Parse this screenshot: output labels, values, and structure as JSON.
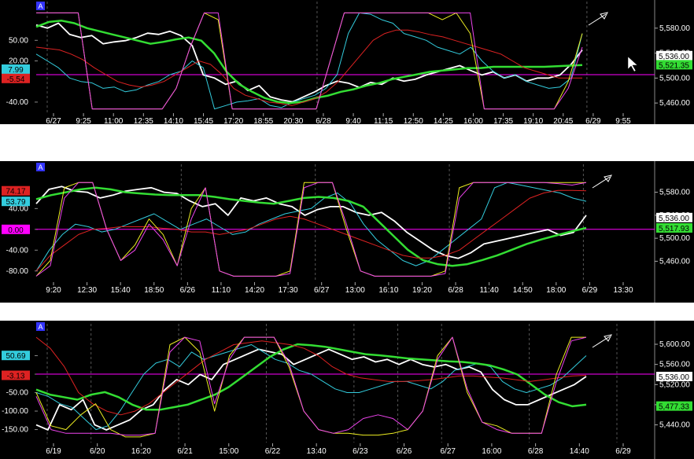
{
  "colors": {
    "background": "#000000",
    "gap": "#ffffff",
    "white_series": "#ffffff",
    "cyan_series": "#33ccdd",
    "green_series": "#33dd33",
    "red_series": "#dd2222",
    "yellow_series": "#eeee22",
    "magenta_series": "#ee44ee",
    "hline": "#ff00ff",
    "grid_vertical": "#555555",
    "panel_marker": "#3333ff"
  },
  "panel_marker_label": "A",
  "chart_data": [
    {
      "type": "line",
      "panel": "top",
      "x_ticks": [
        "6/27",
        "9:25",
        "11:00",
        "12:35",
        "14:10",
        "15:45",
        "17:20",
        "18:55",
        "20:30",
        "6/28",
        "9:40",
        "11:15",
        "12:50",
        "14:25",
        "16:00",
        "17:35",
        "19:10",
        "20:45",
        "6/29",
        "9:55"
      ],
      "left_ticks": [
        "50.00",
        "20.00",
        "-40.00"
      ],
      "left_ylim": [
        -55,
        95
      ],
      "left_badges": [
        {
          "text": "7.99",
          "value": 7.99,
          "bg": "#33ccdd",
          "fg": "#000000"
        },
        {
          "text": "-5.54",
          "value": -5.54,
          "bg": "#dd2222",
          "fg": "#000000"
        }
      ],
      "right_ticks": [
        "5,580.00",
        "5,540.00",
        "5,500.00",
        "5,460.00"
      ],
      "right_ylim": [
        5445,
        5610
      ],
      "right_labels": [
        {
          "text": "5,536.00",
          "value": 5536.0,
          "bg": "#ffffff",
          "fg": "#000000"
        },
        {
          "text": "5,521.35",
          "value": 5521.35,
          "bg": "#33dd33",
          "fg": "#000000"
        }
      ],
      "hline_value": 0,
      "series": [
        {
          "color": "white_series",
          "axis": "right",
          "values": [
            5585,
            5580,
            5588,
            5570,
            5565,
            5568,
            5555,
            5558,
            5560,
            5565,
            5572,
            5570,
            5575,
            5568,
            5552,
            5505,
            5500,
            5490,
            5495,
            5480,
            5488,
            5470,
            5465,
            5462,
            5470,
            5478,
            5488,
            5495,
            5492,
            5485,
            5493,
            5490,
            5500,
            5495,
            5498,
            5505,
            5510,
            5515,
            5520,
            5512,
            5505,
            5510,
            5500,
            5505,
            5495,
            5500,
            5500,
            5505,
            5522,
            5545
          ]
        },
        {
          "color": "cyan_series",
          "axis": "left",
          "values": [
            30,
            20,
            10,
            -5,
            -10,
            -12,
            -20,
            -18,
            -25,
            -22,
            -15,
            -10,
            0,
            5,
            20,
            10,
            -50,
            -45,
            -40,
            -38,
            -35,
            -45,
            -48,
            -40,
            -35,
            -30,
            -20,
            0,
            60,
            90,
            88,
            80,
            75,
            60,
            55,
            50,
            40,
            35,
            30,
            40,
            20,
            5,
            -5,
            0,
            -10,
            -15,
            -20,
            -18,
            -5,
            60
          ]
        },
        {
          "color": "green_series",
          "axis": "right",
          "values": [
            5582,
            5590,
            5592,
            5588,
            5580,
            5575,
            5570,
            5565,
            5560,
            5555,
            5558,
            5562,
            5565,
            5560,
            5540,
            5510,
            5490,
            5478,
            5468,
            5462,
            5460,
            5462,
            5468,
            5472,
            5478,
            5482,
            5488,
            5492,
            5498,
            5502,
            5506,
            5510,
            5512,
            5514,
            5516,
            5516,
            5518,
            5518,
            5518,
            5518,
            5518,
            5519,
            5520,
            5521
          ]
        },
        {
          "color": "red_series",
          "axis": "left",
          "values": [
            40,
            38,
            36,
            30,
            22,
            10,
            0,
            -10,
            -15,
            -18,
            -15,
            -10,
            0,
            10,
            20,
            15,
            0,
            -20,
            -30,
            -35,
            -40,
            -42,
            -45,
            -40,
            -35,
            -25,
            -10,
            10,
            30,
            50,
            60,
            65,
            65,
            62,
            58,
            55,
            50,
            45,
            40,
            35,
            30,
            20,
            10,
            5,
            0,
            -5,
            -5,
            -5
          ]
        },
        {
          "color": "yellow_series",
          "axis": "left",
          "values": [
            90,
            90,
            90,
            90,
            -50,
            -50,
            -50,
            -50,
            -50,
            -50,
            -20,
            40,
            90,
            80,
            -50,
            -50,
            -50,
            -50,
            -50,
            -50,
            -50,
            20,
            90,
            90,
            90,
            90,
            90,
            90,
            90,
            80,
            90,
            60,
            -50,
            -50,
            -50,
            -50,
            -50,
            -50,
            -10,
            60
          ]
        },
        {
          "color": "magenta_series",
          "axis": "left",
          "values": [
            90,
            90,
            90,
            90,
            -50,
            -50,
            -50,
            -50,
            -50,
            -50,
            -20,
            40,
            90,
            90,
            -50,
            -50,
            -50,
            -50,
            -50,
            -50,
            -50,
            20,
            90,
            90,
            90,
            90,
            90,
            90,
            90,
            90,
            90,
            90,
            -50,
            -50,
            -50,
            -50,
            -50,
            -50,
            -20,
            40
          ]
        }
      ]
    },
    {
      "type": "line",
      "panel": "middle",
      "x_ticks": [
        "9:20",
        "12:30",
        "15:40",
        "18:50",
        "6/26",
        "11:10",
        "14:20",
        "17:30",
        "6/27",
        "13:00",
        "16:10",
        "19:20",
        "6/28",
        "11:40",
        "14:50",
        "18:00",
        "6/29",
        "13:30"
      ],
      "left_ticks": [
        "40.00",
        "0.00",
        "-40.00",
        "-80.00"
      ],
      "left_ylim": [
        -100,
        110
      ],
      "left_badges": [
        {
          "text": "74.17",
          "value": 74.17,
          "bg": "#dd2222",
          "fg": "#000000"
        },
        {
          "text": "53.79",
          "value": 53.79,
          "bg": "#33ccdd",
          "fg": "#000000"
        },
        {
          "text": "0.00",
          "value": 0.0,
          "bg": "#ff00ff",
          "fg": "#000000"
        }
      ],
      "right_ticks": [
        "5,580.00",
        "5,540.00",
        "5,500.00",
        "5,460.00"
      ],
      "right_ylim": [
        5425,
        5615
      ],
      "right_labels": [
        {
          "text": "5,536.00",
          "value": 5536.0,
          "bg": "#ffffff",
          "fg": "#000000"
        },
        {
          "text": "5,517.93",
          "value": 5517.93,
          "bg": "#33dd33",
          "fg": "#000000"
        }
      ],
      "hline_value": 0,
      "series": [
        {
          "color": "white_series",
          "axis": "right",
          "values": [
            5560,
            5585,
            5590,
            5582,
            5580,
            5570,
            5575,
            5582,
            5585,
            5588,
            5580,
            5578,
            5565,
            5555,
            5560,
            5540,
            5570,
            5565,
            5570,
            5560,
            5555,
            5540,
            5550,
            5555,
            5555,
            5545,
            5540,
            5545,
            5530,
            5510,
            5495,
            5480,
            5470,
            5465,
            5475,
            5490,
            5495,
            5500,
            5505,
            5510,
            5515,
            5505,
            5510,
            5540
          ]
        },
        {
          "color": "cyan_series",
          "axis": "left",
          "values": [
            -80,
            -40,
            -10,
            10,
            5,
            -5,
            0,
            10,
            20,
            30,
            15,
            0,
            10,
            20,
            5,
            -10,
            -5,
            10,
            20,
            30,
            35,
            40,
            60,
            70,
            50,
            10,
            -20,
            -40,
            -60,
            -70,
            -60,
            -40,
            -20,
            0,
            20,
            80,
            90,
            85,
            80,
            75,
            70,
            60,
            54
          ]
        },
        {
          "color": "green_series",
          "axis": "right",
          "values": [
            5568,
            5575,
            5580,
            5585,
            5588,
            5585,
            5580,
            5578,
            5576,
            5575,
            5575,
            5575,
            5572,
            5568,
            5565,
            5562,
            5560,
            5565,
            5570,
            5572,
            5570,
            5565,
            5555,
            5530,
            5505,
            5480,
            5462,
            5455,
            5452,
            5455,
            5462,
            5470,
            5480,
            5490,
            5498,
            5505,
            5512,
            5518
          ]
        },
        {
          "color": "red_series",
          "axis": "left",
          "values": [
            -80,
            -50,
            -30,
            -10,
            0,
            2,
            5,
            5,
            5,
            2,
            0,
            -5,
            -5,
            -10,
            -5,
            0,
            10,
            20,
            25,
            20,
            10,
            0,
            -10,
            -20,
            -30,
            -40,
            -50,
            -55,
            -55,
            -50,
            -40,
            -20,
            0,
            20,
            40,
            60,
            70,
            75,
            75,
            74
          ]
        },
        {
          "color": "yellow_series",
          "axis": "left",
          "values": [
            -90,
            -60,
            80,
            90,
            90,
            0,
            -60,
            -30,
            20,
            -10,
            -70,
            40,
            80,
            -80,
            -90,
            -90,
            -90,
            -90,
            -80,
            90,
            90,
            90,
            0,
            -80,
            -90,
            -90,
            -90,
            -90,
            -90,
            -80,
            80,
            90,
            90,
            90,
            90,
            90,
            90,
            90,
            90,
            90
          ]
        },
        {
          "color": "magenta_series",
          "axis": "left",
          "values": [
            -90,
            -70,
            60,
            90,
            90,
            0,
            -60,
            -40,
            10,
            -20,
            -70,
            20,
            80,
            -80,
            -90,
            -90,
            -90,
            -90,
            -85,
            80,
            90,
            90,
            10,
            -80,
            -90,
            -90,
            -90,
            -90,
            -90,
            -85,
            60,
            90,
            90,
            90,
            90,
            90,
            90,
            88,
            85,
            90
          ]
        }
      ]
    },
    {
      "type": "line",
      "panel": "bottom",
      "x_ticks": [
        "6/19",
        "6/20",
        "16:20",
        "6/21",
        "15:00",
        "6/22",
        "13:40",
        "6/23",
        "6/26",
        "6/27",
        "16:00",
        "6/28",
        "14:40",
        "6/29"
      ],
      "left_ticks": [
        "50.00",
        "0.00",
        "-50.00",
        "-100.00",
        "-150.00"
      ],
      "left_ylim": [
        -185,
        115
      ],
      "left_badges": [
        {
          "text": "50.69",
          "value": 50.69,
          "bg": "#33ccdd",
          "fg": "#000000"
        },
        {
          "text": "-3.13",
          "value": -3.13,
          "bg": "#dd2222",
          "fg": "#000000"
        }
      ],
      "right_ticks": [
        "5,600.00",
        "5,560.00",
        "5,520.00",
        "5,480.00",
        "5,440.00"
      ],
      "right_ylim": [
        5405,
        5625
      ],
      "right_labels": [
        {
          "text": "5,536.00",
          "value": 5536.0,
          "bg": "#ffffff",
          "fg": "#000000"
        },
        {
          "text": "5,477.33",
          "value": 5477.33,
          "bg": "#33dd33",
          "fg": "#000000"
        }
      ],
      "hline_value": 0,
      "series": [
        {
          "color": "white_series",
          "axis": "right",
          "values": [
            5440,
            5430,
            5480,
            5470,
            5490,
            5440,
            5430,
            5440,
            5450,
            5470,
            5480,
            5510,
            5530,
            5520,
            5540,
            5530,
            5560,
            5570,
            5580,
            5590,
            5585,
            5580,
            5560,
            5570,
            5580,
            5590,
            5580,
            5570,
            5575,
            5565,
            5570,
            5560,
            5570,
            5560,
            5555,
            5560,
            5550,
            5555,
            5545,
            5510,
            5490,
            5480,
            5480,
            5490,
            5500,
            5510,
            5520,
            5536
          ]
        },
        {
          "color": "cyan_series",
          "axis": "left",
          "values": [
            -50,
            -60,
            -80,
            -90,
            -120,
            -150,
            -140,
            -100,
            -50,
            0,
            30,
            40,
            20,
            60,
            40,
            50,
            60,
            70,
            80,
            60,
            40,
            30,
            10,
            0,
            -20,
            -40,
            -50,
            -50,
            -40,
            -30,
            -20,
            -20,
            -30,
            -40,
            -20,
            10,
            20,
            30,
            20,
            -20,
            -40,
            -50,
            -40,
            -30,
            -10,
            20,
            50
          ]
        },
        {
          "color": "green_series",
          "axis": "right",
          "values": [
            5510,
            5500,
            5495,
            5490,
            5500,
            5505,
            5495,
            5480,
            5470,
            5470,
            5475,
            5480,
            5490,
            5500,
            5515,
            5535,
            5555,
            5575,
            5590,
            5600,
            5598,
            5595,
            5590,
            5585,
            5580,
            5578,
            5575,
            5572,
            5570,
            5568,
            5566,
            5565,
            5562,
            5558,
            5550,
            5540,
            5520,
            5500,
            5485,
            5477,
            5480
          ]
        },
        {
          "color": "red_series",
          "axis": "left",
          "values": [
            100,
            70,
            20,
            -50,
            -80,
            -100,
            -110,
            -100,
            -80,
            -50,
            -20,
            10,
            40,
            60,
            80,
            85,
            90,
            85,
            80,
            70,
            50,
            20,
            0,
            -10,
            -15,
            -20,
            -20,
            -18,
            -15,
            -10,
            -5,
            -5,
            -8,
            -10,
            -15,
            -20,
            -15,
            -10,
            -5,
            -3
          ]
        },
        {
          "color": "yellow_series",
          "axis": "left",
          "values": [
            -50,
            -140,
            -150,
            -110,
            -80,
            -150,
            -170,
            -170,
            -160,
            80,
            100,
            60,
            -100,
            50,
            100,
            100,
            100,
            20,
            -100,
            -150,
            -160,
            -160,
            -165,
            -165,
            -160,
            -150,
            -100,
            50,
            100,
            -50,
            -130,
            -140,
            -160,
            -160,
            -160,
            0,
            100,
            100
          ]
        },
        {
          "color": "magenta_series",
          "axis": "left",
          "values": [
            -60,
            -150,
            -160,
            -160,
            -160,
            -160,
            -165,
            -165,
            -160,
            60,
            100,
            90,
            -80,
            40,
            100,
            100,
            100,
            30,
            -100,
            -150,
            -160,
            -150,
            -120,
            -110,
            -120,
            -150,
            -100,
            40,
            100,
            -40,
            -130,
            -150,
            -160,
            -160,
            -160,
            -20,
            90,
            100
          ]
        }
      ]
    }
  ]
}
